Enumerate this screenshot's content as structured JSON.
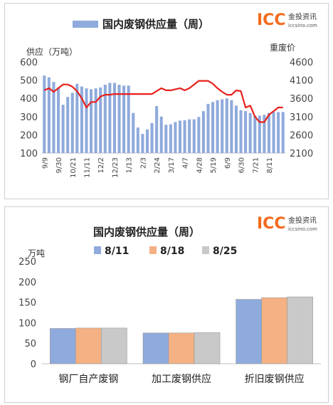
{
  "chart_data": [
    {
      "type": "bar",
      "title": "国内废钢供应量（周）",
      "legend": "国内废钢供应量（周）",
      "ylabel_left": "供应（万吨）",
      "ylabel_right": "重废价",
      "ylim_left": [
        100,
        600
      ],
      "yticks_left": [
        100,
        200,
        300,
        400,
        500,
        600
      ],
      "ylim_right": [
        2100,
        4600
      ],
      "yticks_right": [
        2100,
        2600,
        3100,
        3600,
        4100,
        4600
      ],
      "xtick_labels": [
        "9/9",
        "9/30",
        "10/21",
        "11/11",
        "12/2",
        "12/23",
        "1/13",
        "2/3",
        "2/24",
        "3/17",
        "4/7",
        "4/28",
        "5/19",
        "6/9",
        "6/30",
        "7/21",
        "8/11"
      ],
      "tick_every": 3,
      "series": [
        {
          "type": "bar",
          "color": "#8faadc",
          "values": [
            525,
            515,
            490,
            460,
            365,
            408,
            430,
            480,
            465,
            455,
            450,
            455,
            460,
            475,
            485,
            485,
            475,
            470,
            470,
            320,
            240,
            205,
            230,
            265,
            358,
            300,
            255,
            258,
            270,
            278,
            280,
            285,
            285,
            298,
            330,
            370,
            380,
            390,
            395,
            400,
            390,
            360,
            335,
            330,
            320,
            305,
            305,
            310,
            320,
            325,
            325,
            325
          ]
        },
        {
          "type": "line",
          "axis": "right",
          "color": "#e8201c",
          "values": [
            3820,
            3880,
            3780,
            3880,
            3980,
            3980,
            3920,
            3800,
            3600,
            3350,
            3500,
            3500,
            3650,
            3700,
            3700,
            3720,
            3720,
            3720,
            3720,
            3720,
            3720,
            3720,
            3720,
            3720,
            3800,
            3880,
            3820,
            3820,
            3850,
            3880,
            3820,
            3880,
            3980,
            4080,
            4080,
            4080,
            4000,
            3880,
            3780,
            3700,
            3700,
            3820,
            3800,
            3350,
            3400,
            3100,
            2950,
            2950,
            3150,
            3250,
            3350,
            3350
          ]
        }
      ]
    },
    {
      "type": "bar",
      "title": "国内废钢供应量（周）",
      "ylabel": "万吨",
      "ylim": [
        0,
        250
      ],
      "yticks": [
        0,
        50,
        100,
        150,
        200,
        250
      ],
      "categories": [
        "钢厂自产废钢",
        "加工废钢供应",
        "折旧废钢供应"
      ],
      "series": [
        {
          "name": "8/11",
          "color": "#8faadc",
          "values": [
            86,
            75,
            157
          ]
        },
        {
          "name": "8/18",
          "color": "#f4b183",
          "values": [
            87,
            75,
            161
          ]
        },
        {
          "name": "8/25",
          "color": "#c9c9c9",
          "values": [
            87,
            76,
            163
          ]
        }
      ]
    }
  ],
  "logo": {
    "mark": "ICC",
    "cn": "金投资讯",
    "url": "iccsino.com"
  },
  "colors": {
    "bar_blue": "#8faadc",
    "bar_orange": "#f4b183",
    "bar_gray": "#c9c9c9",
    "line_red": "#e8201c",
    "logo_orange": "#f26b1d"
  }
}
